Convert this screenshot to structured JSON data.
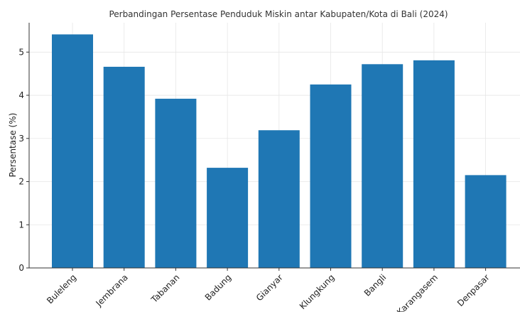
{
  "chart_data": {
    "type": "bar",
    "title": "Perbandingan Persentase Penduduk Miskin antar Kabupaten/Kota di Bali (2024)",
    "xlabel": "",
    "ylabel": "Persentase (%)",
    "categories": [
      "Buleleng",
      "Jembrana",
      "Tabanan",
      "Badung",
      "Gianyar",
      "Klungkung",
      "Bangli",
      "Karangasem",
      "Denpasar"
    ],
    "values": [
      5.41,
      4.66,
      3.92,
      2.32,
      3.19,
      4.25,
      4.72,
      4.81,
      2.15
    ],
    "ylim": [
      0,
      5.68
    ],
    "yticks": [
      0,
      1,
      2,
      3,
      4,
      5
    ],
    "grid": true,
    "legend": "none",
    "colors": {
      "bar": "#1f77b4",
      "grid": "#e6e6e6",
      "axis": "#333333"
    }
  }
}
